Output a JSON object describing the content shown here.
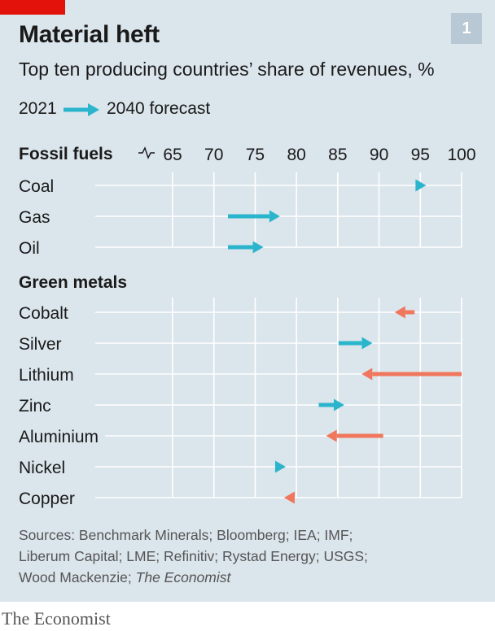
{
  "header": {
    "title": "Material heft",
    "badge": "1",
    "subtitle": "Top ten producing countries’ share of revenues, %"
  },
  "legend": {
    "start_label": "2021",
    "end_label": "2040 forecast"
  },
  "colors": {
    "increase": "#2bb5cc",
    "decrease": "#f0765c",
    "brand_red": "#e3120b",
    "background": "#dbe5ec",
    "grid": "#ffffff"
  },
  "chart_data": {
    "type": "arrow",
    "x_tick_labels": [
      "65",
      "70",
      "75",
      "80",
      "85",
      "90",
      "95",
      "100"
    ],
    "xlim": [
      60.2,
      100
    ],
    "axis_break_before": 65,
    "grid": true,
    "groups": [
      {
        "name": "Fossil fuels",
        "items": [
          {
            "label": "Coal",
            "start": 94.5,
            "end": 95.7
          },
          {
            "label": "Gas",
            "start": 71.7,
            "end": 78
          },
          {
            "label": "Oil",
            "start": 71.7,
            "end": 76
          }
        ]
      },
      {
        "name": "Green metals",
        "items": [
          {
            "label": "Cobalt",
            "start": 94.3,
            "end": 91.9
          },
          {
            "label": "Silver",
            "start": 85.1,
            "end": 89.2
          },
          {
            "label": "Lithium",
            "start": 100,
            "end": 87.9
          },
          {
            "label": "Zinc",
            "start": 82.7,
            "end": 85.8
          },
          {
            "label": "Aluminium",
            "start": 90.5,
            "end": 83.6
          },
          {
            "label": "Nickel",
            "start": 77.5,
            "end": 78.7
          },
          {
            "label": "Copper",
            "start": 79.7,
            "end": 78.5
          }
        ]
      }
    ]
  },
  "sources": {
    "line1": "Sources: Benchmark Minerals; Bloomberg; IEA; IMF;",
    "line2": "Liberum Capital; LME; Refinitiv; Rystad Energy; USGS;",
    "line3_prefix": "Wood Mackenzie; ",
    "line3_italic": "The Economist"
  },
  "footer": {
    "brand": "The Economist"
  }
}
